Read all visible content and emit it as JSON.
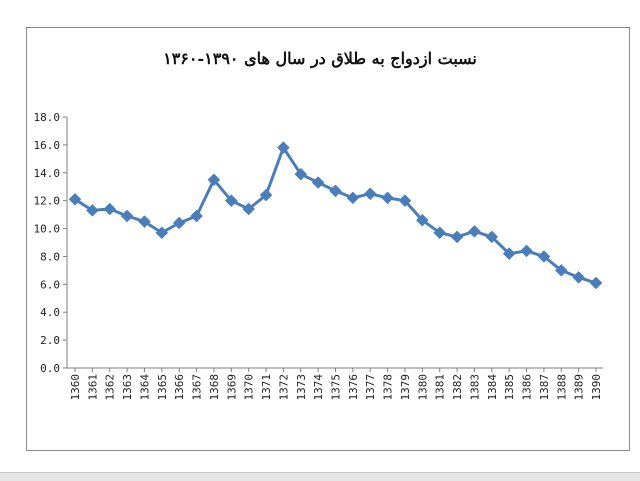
{
  "chart_data": {
    "type": "line",
    "title": "نسبت ازدواج به طلاق در سال های ۱۳۹۰-۱۳۶۰",
    "xlabel": "",
    "ylabel": "",
    "ylim": [
      0,
      18
    ],
    "y_ticks": [
      "0.0",
      "2.0",
      "4.0",
      "6.0",
      "8.0",
      "10.0",
      "12.0",
      "14.0",
      "16.0",
      "18.0"
    ],
    "grid": false,
    "legend": "none",
    "line_color": "#4a7ebb",
    "categories": [
      "1360",
      "1361",
      "1362",
      "1363",
      "1364",
      "1365",
      "1366",
      "1367",
      "1368",
      "1369",
      "1370",
      "1371",
      "1372",
      "1373",
      "1374",
      "1375",
      "1376",
      "1377",
      "1378",
      "1379",
      "1380",
      "1381",
      "1382",
      "1383",
      "1384",
      "1385",
      "1386",
      "1387",
      "1388",
      "1389",
      "1390"
    ],
    "series": [
      {
        "values": [
          12.1,
          11.3,
          11.4,
          10.9,
          10.5,
          9.7,
          10.4,
          10.9,
          13.5,
          12.0,
          11.4,
          12.4,
          15.8,
          13.9,
          13.3,
          12.7,
          12.2,
          12.5,
          12.2,
          12.0,
          10.6,
          9.7,
          9.4,
          9.8,
          9.4,
          8.2,
          8.4,
          8.0,
          7.0,
          6.5,
          6.1
        ]
      }
    ]
  }
}
